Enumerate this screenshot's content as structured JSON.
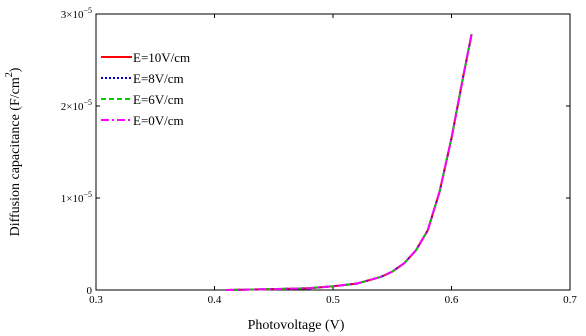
{
  "chart_data": {
    "type": "line",
    "title": "",
    "xlabel": "Photovoltage  (V)",
    "ylabel": "Diffusion capacitance  (F/cm",
    "ylabel_superscript": "2",
    "ylabel_close": ")",
    "xlim": [
      0.3,
      0.7
    ],
    "ylim": [
      0,
      3e-05
    ],
    "x_ticks": [
      0.3,
      0.4,
      0.5,
      0.6,
      0.7
    ],
    "x_tick_labels": [
      "0.3",
      "0.4",
      "0.5",
      "0.6",
      "0.7"
    ],
    "y_ticks": [
      0,
      1e-05,
      2e-05,
      3e-05
    ],
    "y_tick_labels": [
      {
        "base": "0",
        "exp": ""
      },
      {
        "base": "1×10",
        "exp": "−5"
      },
      {
        "base": "2×10",
        "exp": "−5"
      },
      {
        "base": "3×10",
        "exp": "−5"
      }
    ],
    "grid": false,
    "legend_position": "top-left",
    "x": [
      0.41,
      0.45,
      0.48,
      0.5,
      0.52,
      0.54,
      0.55,
      0.56,
      0.57,
      0.58,
      0.59,
      0.6,
      0.61,
      0.617
    ],
    "series": [
      {
        "name": "E=10V/cm",
        "color": "#ff0000",
        "dash": "solid",
        "values": [
          0.0,
          1e-07,
          2e-07,
          4e-07,
          7e-07,
          1.4e-06,
          2e-06,
          2.9e-06,
          4.3e-06,
          6.5e-06,
          1.07e-05,
          1.65e-05,
          2.33e-05,
          2.78e-05
        ]
      },
      {
        "name": "E=8V/cm",
        "color": "#0000cc",
        "dash": "dotted",
        "values": [
          0.0,
          1e-07,
          2e-07,
          4e-07,
          7e-07,
          1.4e-06,
          2e-06,
          2.9e-06,
          4.3e-06,
          6.5e-06,
          1.07e-05,
          1.65e-05,
          2.33e-05,
          2.78e-05
        ]
      },
      {
        "name": "E=6V/cm",
        "color": "#00cc00",
        "dash": "dashed",
        "values": [
          0.0,
          1e-07,
          2e-07,
          4e-07,
          7e-07,
          1.4e-06,
          2e-06,
          2.9e-06,
          4.3e-06,
          6.5e-06,
          1.07e-05,
          1.65e-05,
          2.33e-05,
          2.78e-05
        ]
      },
      {
        "name": "E=0V/cm",
        "color": "#ff00ff",
        "dash": "dashdot",
        "values": [
          0.0,
          1e-07,
          2e-07,
          4e-07,
          7e-07,
          1.4e-06,
          2e-06,
          2.9e-06,
          4.3e-06,
          6.5e-06,
          1.07e-05,
          1.65e-05,
          2.33e-05,
          2.78e-05
        ]
      }
    ]
  }
}
